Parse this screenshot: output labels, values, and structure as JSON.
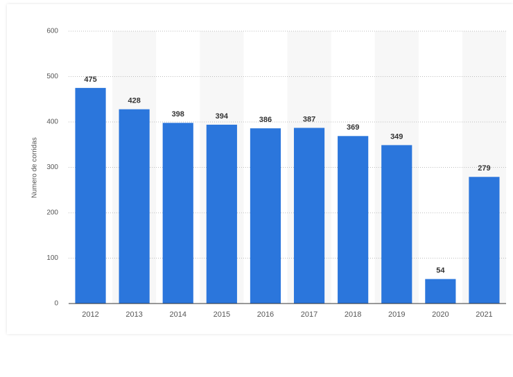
{
  "chart_data": {
    "type": "bar",
    "y_label": "Numero de corridas",
    "categories": [
      "2012",
      "2013",
      "2014",
      "2015",
      "2016",
      "2017",
      "2018",
      "2019",
      "2020",
      "2021"
    ],
    "values": [
      475,
      428,
      398,
      394,
      386,
      387,
      369,
      349,
      54,
      279
    ],
    "color": "#2b76dc",
    "ylim": [
      0,
      600
    ],
    "yticks": [
      0,
      100,
      200,
      300,
      400,
      500,
      600
    ],
    "grid": true
  }
}
